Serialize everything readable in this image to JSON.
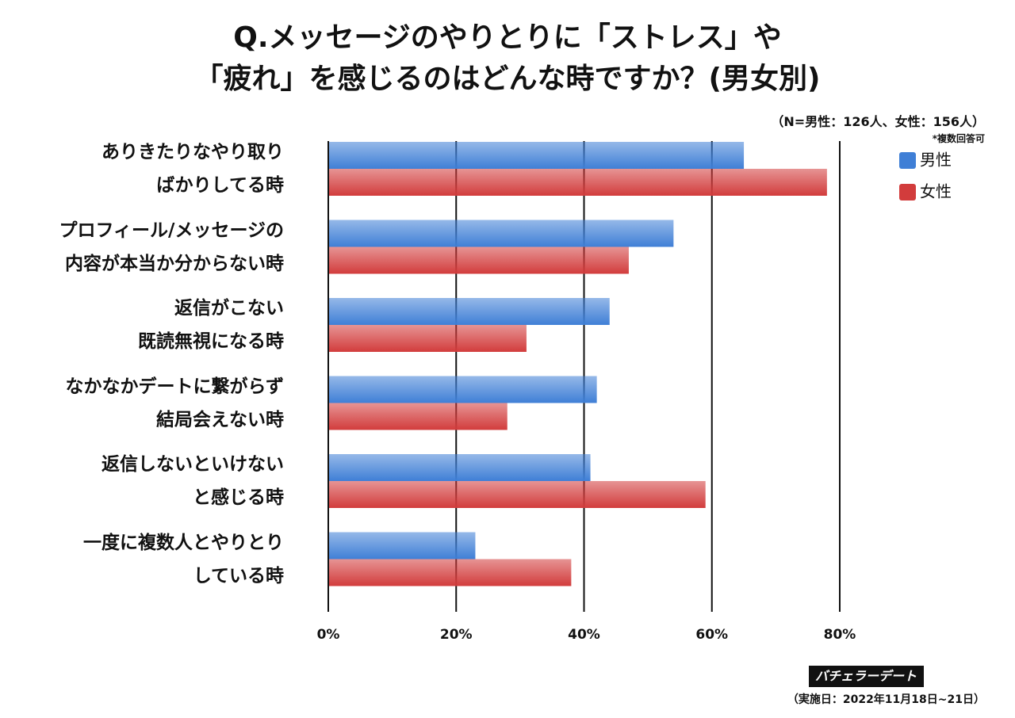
{
  "chart_data": {
    "type": "hbar",
    "title": "Q.メッセージのやりとりに「ストレス」や\n「疲れ」を感じるのはどんな時ですか？(男女別)",
    "subtitle": "（N=男性：126人、女性：156人）",
    "annotations": [
      "*複数回答可",
      "バチェラーデート",
      "（実施日：2022年11月18日~21日）"
    ],
    "categories": [
      "ありきたりなやり取り\nばかりしてる時",
      "プロフィール/メッセージの\n内容が本当か分からない時",
      "返信がこない\n既読無視になる時",
      "なかなかデートに繋がらず\n結局会えない時",
      "返信しないといけない\nと感じる時",
      "一度に複数人とやりとり\nしている時"
    ],
    "series": [
      {
        "name": "男性",
        "color": "#3f7fd6",
        "values": [
          65,
          54,
          44,
          42,
          41,
          23
        ]
      },
      {
        "name": "女性",
        "color": "#d23c3c",
        "values": [
          78,
          47,
          31,
          28,
          59,
          38
        ]
      }
    ],
    "xlim": [
      0,
      80
    ],
    "xticks": [
      {
        "value": 0,
        "label": "0%"
      },
      {
        "value": 20,
        "label": "20%"
      },
      {
        "value": 40,
        "label": "40%"
      },
      {
        "value": 60,
        "label": "60%"
      },
      {
        "value": 80,
        "label": "80%"
      }
    ],
    "grid": true,
    "legend": "top-right"
  }
}
